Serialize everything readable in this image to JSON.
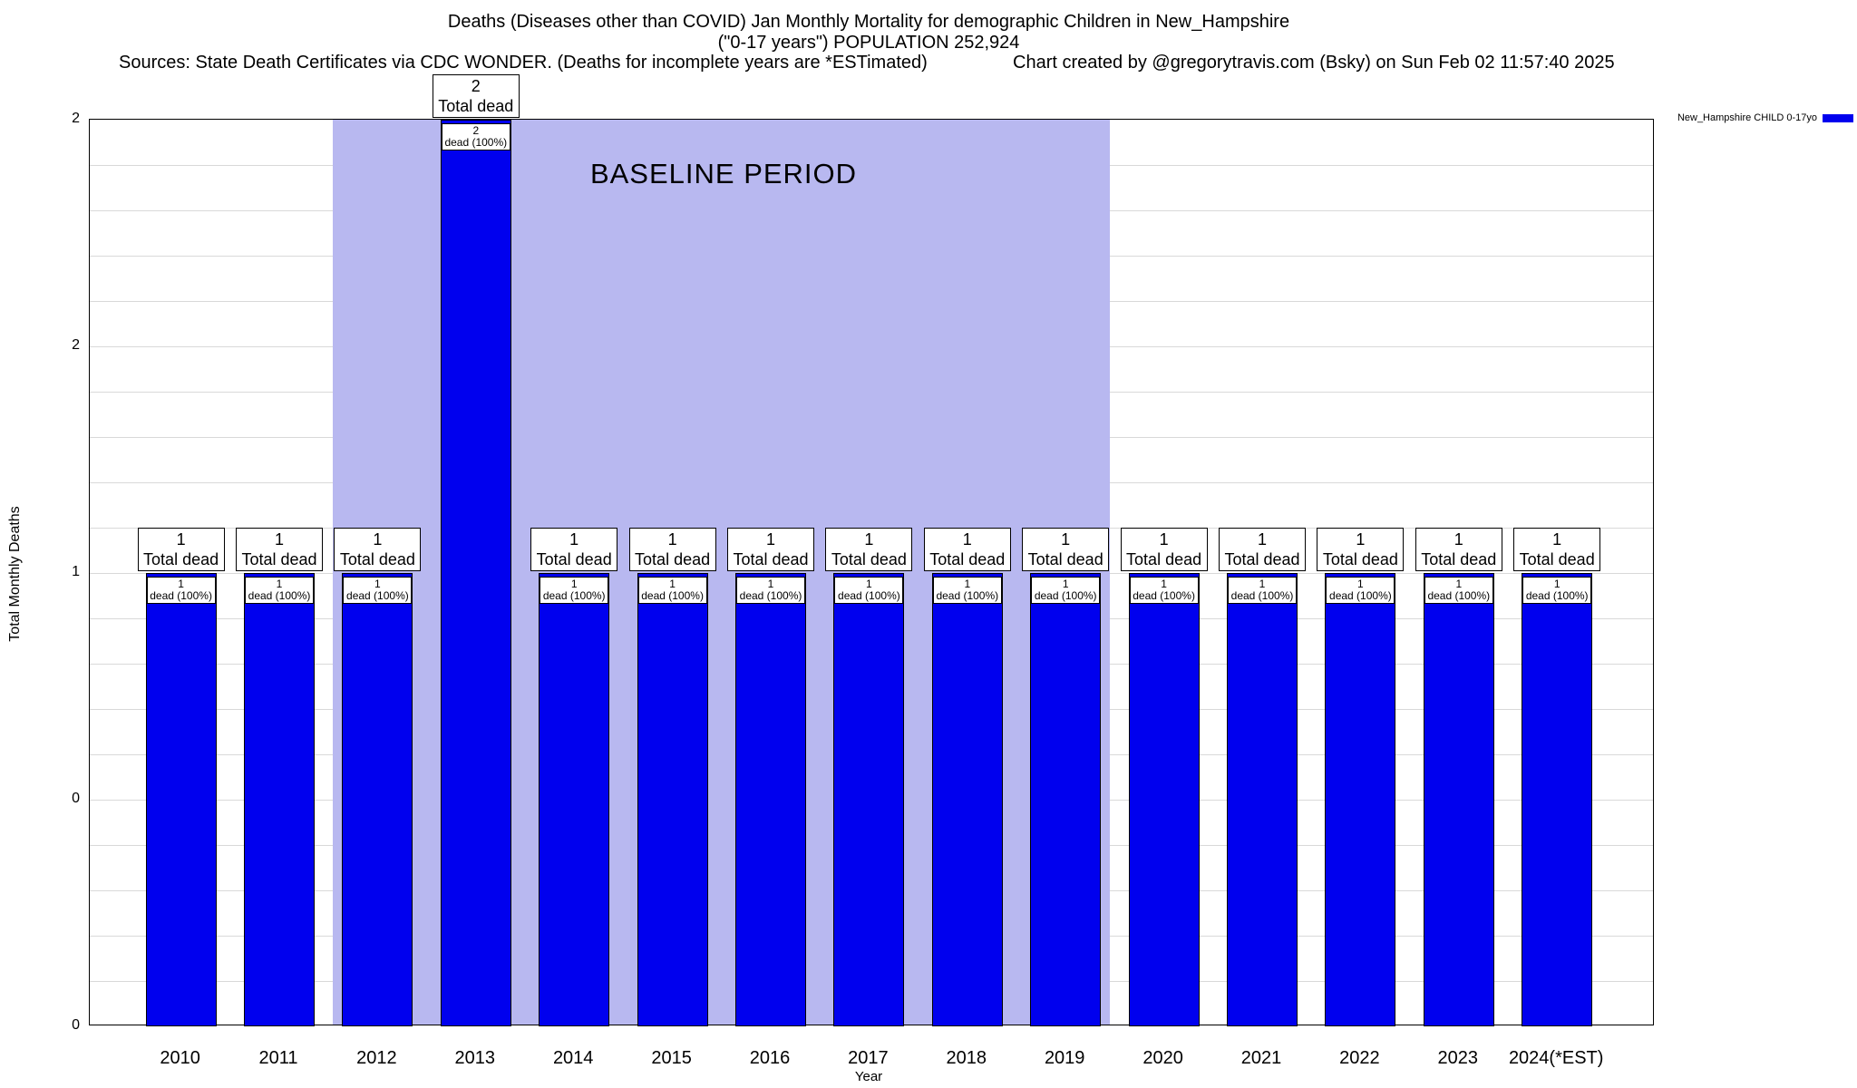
{
  "header": {
    "title_line1": "Deaths (Diseases other than COVID) Jan Monthly Mortality for demographic Children in New_Hampshire",
    "title_line2": "(\"0-17 years\") POPULATION 252,924",
    "sources": "Sources: State Death Certificates via CDC WONDER. (Deaths for incomplete years are *ESTimated)",
    "credit": "Chart created by @gregorytravis.com (Bsky) on Sun Feb 02 11:57:40 2025"
  },
  "chart_data": {
    "type": "bar",
    "title": "Deaths (Diseases other than COVID) Jan Monthly Mortality for demographic Children in New_Hampshire",
    "subtitle": "(\"0-17 years\") POPULATION 252,924",
    "xlabel": "Year",
    "ylabel": "Total Monthly Deaths",
    "ylim": [
      0,
      2
    ],
    "ytick_values": [
      0,
      0.5,
      1,
      1.5,
      2
    ],
    "ytick_labels": [
      "0",
      "0",
      "1",
      "2",
      "2"
    ],
    "grid": true,
    "categories": [
      "2010",
      "2011",
      "2012",
      "2013",
      "2014",
      "2015",
      "2016",
      "2017",
      "2018",
      "2019",
      "2020",
      "2021",
      "2022",
      "2023",
      "2024(*EST)"
    ],
    "values": [
      1,
      1,
      1,
      2,
      1,
      1,
      1,
      1,
      1,
      1,
      1,
      1,
      1,
      1,
      1
    ],
    "bar_color": "#0000ee",
    "grid_color": "#d9d9d9",
    "total_label": "Total dead",
    "inner_label": "dead (100%)",
    "baseline": {
      "label": "BASELINE PERIOD",
      "start_category": "2012",
      "end_category": "2019",
      "color": "#b8b8f0"
    },
    "legend": {
      "label": "New_Hampshire CHILD 0-17yo",
      "color": "#0000ee",
      "position": "top-right"
    }
  }
}
